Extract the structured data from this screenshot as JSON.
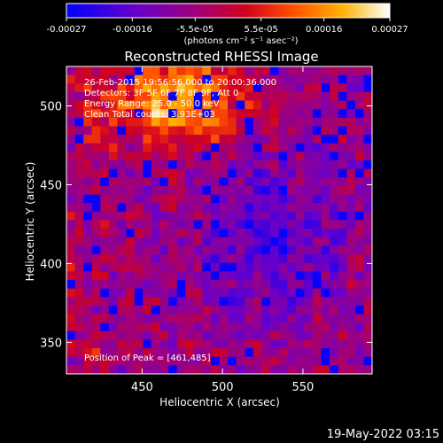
{
  "colorbar": {
    "tick_labels": [
      "-0.00027",
      "-0.00016",
      "-5.5e-05",
      "5.5e-05",
      "0.00016",
      "0.00027"
    ],
    "tick_values": [
      -0.00027,
      -0.00016,
      -5.5e-05,
      5.5e-05,
      0.00016,
      0.00027
    ],
    "range": [
      -0.00027,
      0.00027
    ],
    "unit_label": "(photons cm⁻² s⁻¹ asec⁻²)",
    "colormap": "blue-purple-red-orange-yellow-white",
    "colors": [
      "#0000ff",
      "#6a00c8",
      "#c0004a",
      "#ff3c00",
      "#ffa000",
      "#ffffb0",
      "#ffffff"
    ]
  },
  "chart_data": {
    "type": "heatmap",
    "title": "Reconstructed RHESSI Image",
    "xlabel": "Heliocentric X (arcsec)",
    "ylabel": "Heliocentric Y (arcsec)",
    "xlim": [
      403,
      593
    ],
    "ylim": [
      330,
      525
    ],
    "xticks": [
      450,
      500,
      550
    ],
    "yticks": [
      350,
      400,
      450,
      500
    ],
    "xtick_labels": [
      "450",
      "500",
      "550"
    ],
    "ytick_labels": [
      "350",
      "400",
      "450",
      "500"
    ],
    "annotations": [
      "26-Feb-2015 19:56:56.000 to 20:00:36.000",
      "Detectors: 3F 5F 6F 7F 8F 9F, Att 0",
      "Energy Range: 25.0 - 50.0 keV",
      "Clean     Total counts: 3.93E+03"
    ],
    "peak_label": "Position of Peak = [461,485]",
    "peak_position": [
      461,
      485
    ],
    "notes": "image pixel values are a field of noise-like fluctuations; brightest region near upper left"
  },
  "footer": {
    "timestamp": "19-May-2022 03:15"
  }
}
